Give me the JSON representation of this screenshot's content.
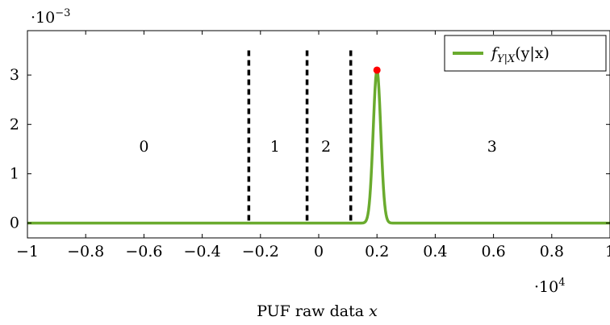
{
  "chart_data": {
    "type": "line",
    "title": "",
    "xlabel": "PUF raw data x",
    "ylabel": "",
    "x_scale_exponent": "·10^4",
    "y_scale_exponent": "·10^-3",
    "x_scale_label": "·10",
    "x_scale_power": "4",
    "y_scale_label": "·10",
    "y_scale_power": "−3",
    "xlim": [
      -1,
      1
    ],
    "ylim": [
      -0.3,
      3.9
    ],
    "x_ticks": [
      -1,
      -0.8,
      -0.6,
      -0.4,
      -0.2,
      0,
      0.2,
      0.4,
      0.6,
      0.8,
      1
    ],
    "x_tick_labels": [
      "−1",
      "−0.8",
      "−0.6",
      "−0.4",
      "−0.2",
      "0",
      "0.2",
      "0.4",
      "0.6",
      "0.8",
      "1"
    ],
    "y_ticks": [
      0,
      1,
      2,
      3
    ],
    "y_tick_labels": [
      "0",
      "1",
      "2",
      "3"
    ],
    "series": [
      {
        "name": "f_{Y|X}(y|x)",
        "color": "#6aab2e",
        "distribution": "gaussian",
        "mean": 0.2,
        "std": 0.013,
        "peak": 3.1
      }
    ],
    "peak_marker": {
      "x": 0.2,
      "y": 3.1,
      "color": "#ff0000"
    },
    "thresholds": [
      {
        "x": -0.24,
        "y_top": 3.5
      },
      {
        "x": -0.04,
        "y_top": 3.5
      },
      {
        "x": 0.11,
        "y_top": 3.5
      }
    ],
    "region_labels": [
      {
        "text": "0",
        "x": -0.6,
        "y": 1.55
      },
      {
        "text": "1",
        "x": -0.15,
        "y": 1.55
      },
      {
        "text": "2",
        "x": 0.025,
        "y": 1.55
      },
      {
        "text": "3",
        "x": 0.595,
        "y": 1.55
      }
    ],
    "legend": {
      "position": "top-right",
      "f_label": "f",
      "sub_label": "Y|X",
      "arg_label": "(y|x)"
    },
    "grid": false
  }
}
